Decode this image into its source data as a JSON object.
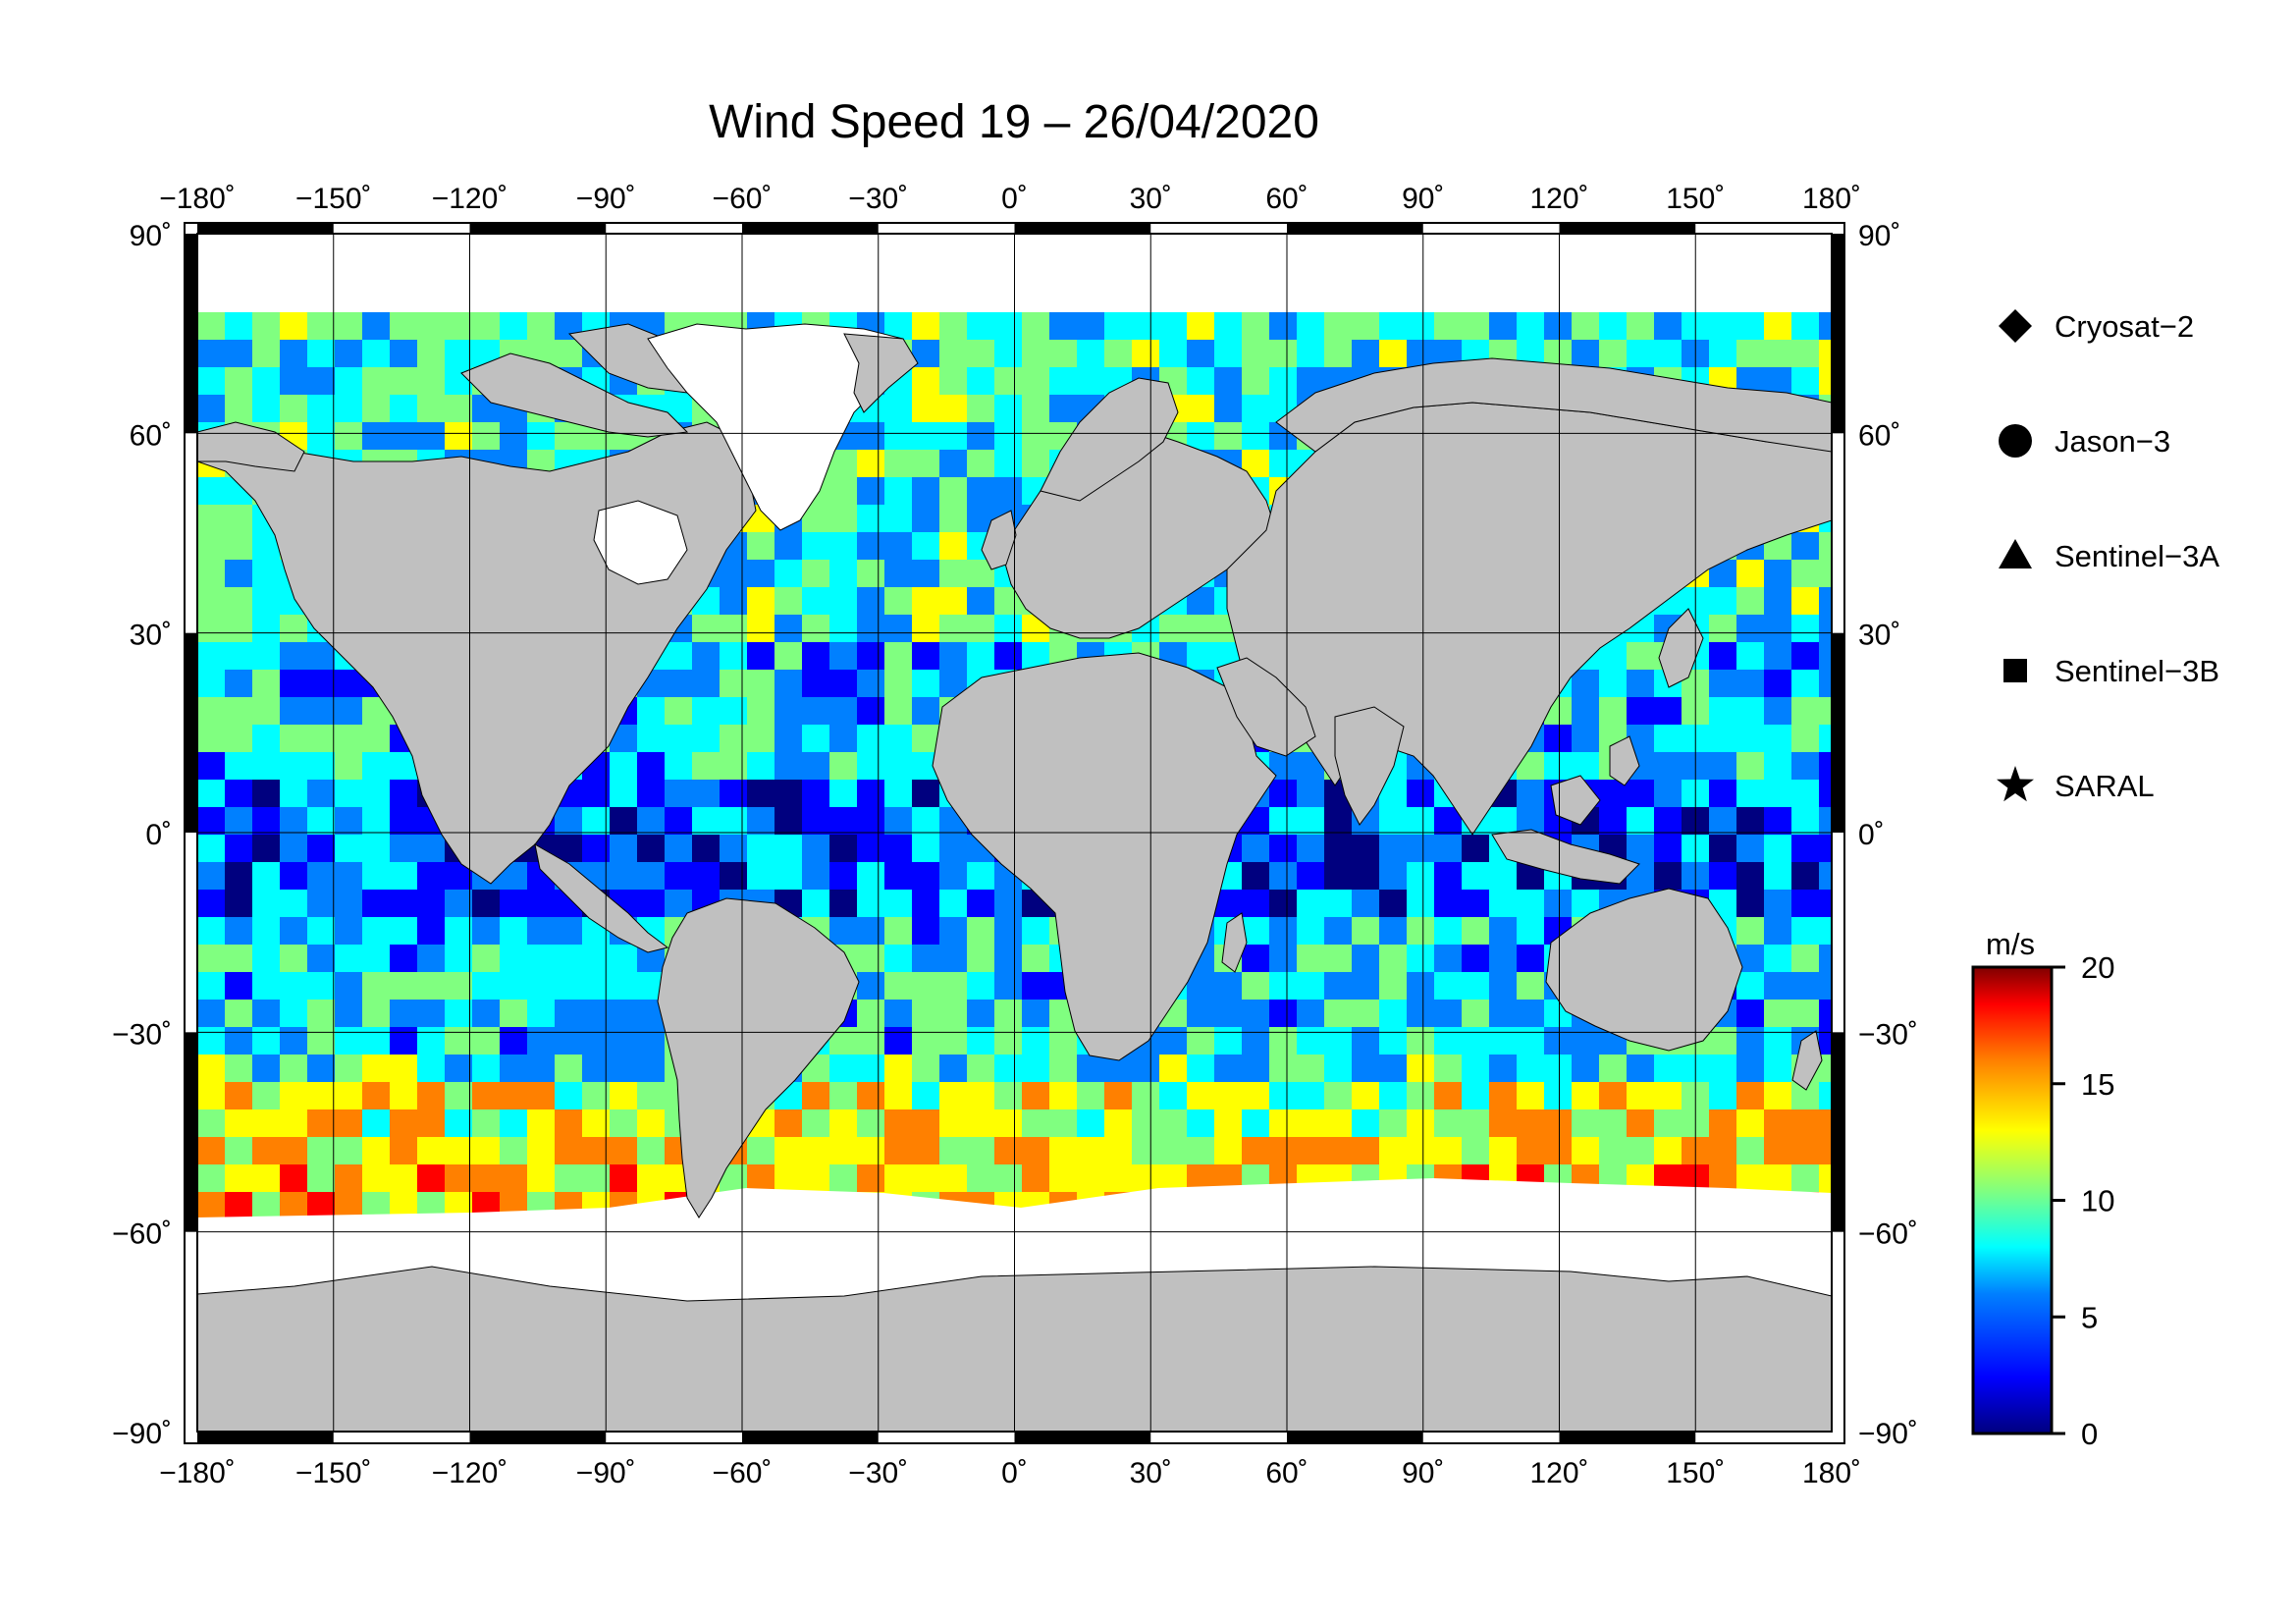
{
  "title": "Wind Speed 19 – 26/04/2020",
  "lon_labels": [
    "−180˚",
    "−150˚",
    "−120˚",
    "−90˚",
    "−60˚",
    "−30˚",
    "0˚",
    "30˚",
    "60˚",
    "90˚",
    "120˚",
    "150˚",
    "180˚"
  ],
  "lat_labels_left": [
    "90˚",
    "60˚",
    "30˚",
    "0˚",
    "−30˚",
    "−60˚",
    "−90˚"
  ],
  "lat_labels_right": [
    "90˚",
    "60˚",
    "30˚",
    "0˚",
    "−30˚",
    "−60˚",
    "−90˚"
  ],
  "legend": [
    {
      "label": "Cryosat−2",
      "symbol": "diamond"
    },
    {
      "label": "Jason−3",
      "symbol": "circle"
    },
    {
      "label": "Sentinel−3A",
      "symbol": "triangle"
    },
    {
      "label": "Sentinel−3B",
      "symbol": "square"
    },
    {
      "label": "SARAL",
      "symbol": "star"
    }
  ],
  "colorbar": {
    "unit": "m/s",
    "min": 0,
    "max": 20,
    "tick_labels": [
      "20",
      "15",
      "10",
      "5",
      "0"
    ],
    "colors": [
      "#00007f",
      "#0000ff",
      "#0080ff",
      "#00ffff",
      "#80ff80",
      "#ffff00",
      "#ff8000",
      "#ff0000",
      "#7f0000"
    ]
  },
  "map": {
    "lon_range": [
      -180,
      180
    ],
    "lat_range": [
      -90,
      90
    ],
    "land_color": "#c0c0c0",
    "ice_color": "#ffffff",
    "gridlines": true
  }
}
